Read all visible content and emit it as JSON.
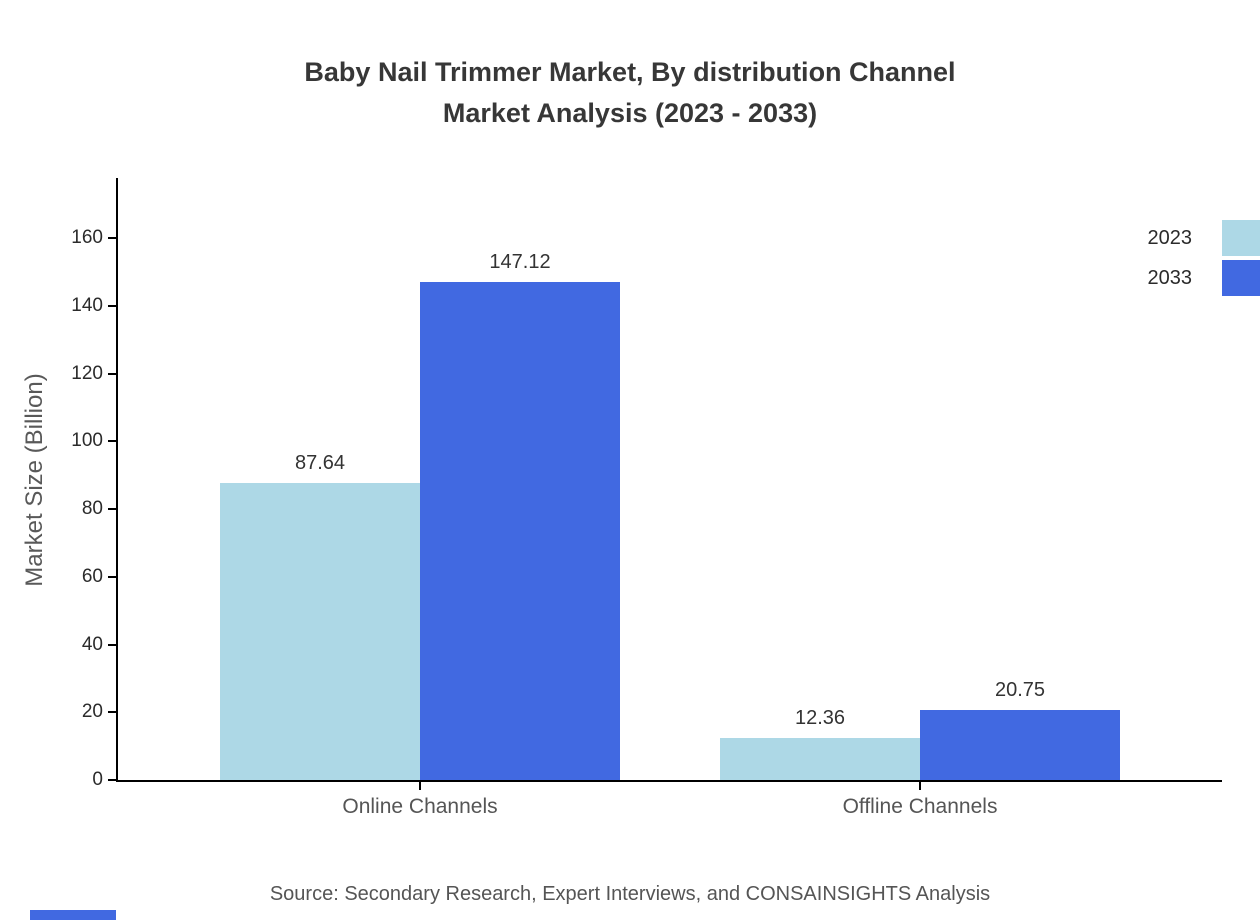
{
  "chart_data": {
    "type": "bar",
    "title_lines": [
      "Baby Nail Trimmer Market, By distribution Channel",
      "Market Analysis (2023 - 2033)"
    ],
    "categories": [
      "Online Channels",
      "Offline Channels"
    ],
    "series": [
      {
        "name": "2023",
        "color": "#add8e6",
        "values": [
          87.64,
          12.36
        ]
      },
      {
        "name": "2033",
        "color": "#4169e1",
        "values": [
          147.12,
          20.75
        ]
      }
    ],
    "ylabel": "Market Size (Billion)",
    "xlabel": "",
    "ylim": [
      0,
      175
    ],
    "yticks": [
      0,
      20,
      40,
      60,
      80,
      100,
      120,
      140,
      160
    ],
    "grid": false,
    "legend_position": "top-right",
    "source_note": "Source: Secondary Research, Expert Interviews, and CONSAINSIGHTS Analysis"
  }
}
